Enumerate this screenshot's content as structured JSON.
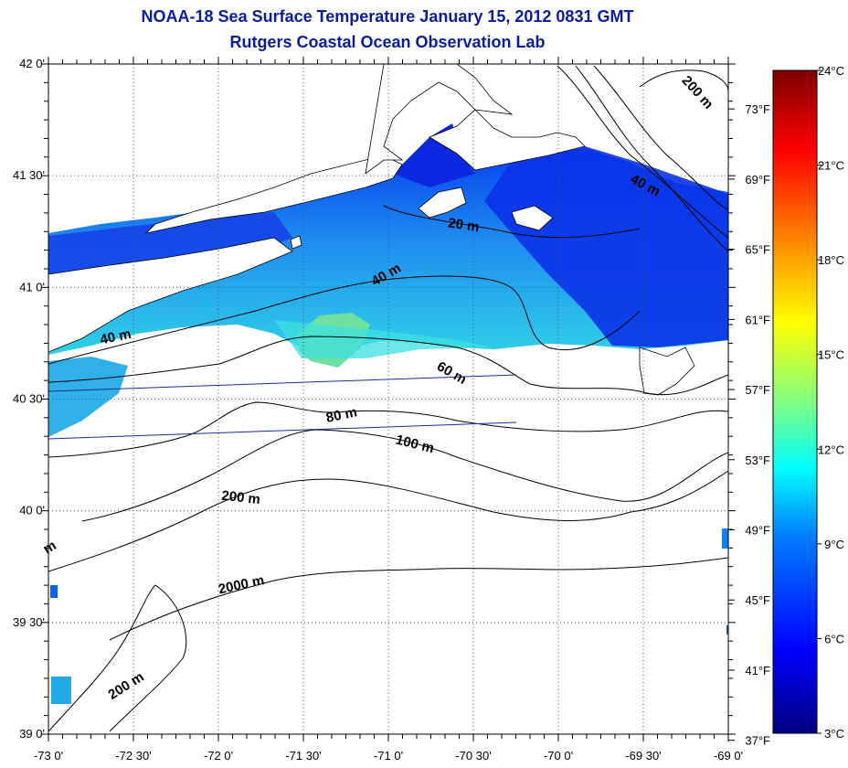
{
  "header": {
    "title": "NOAA-18 Sea Surface Temperature January 15, 2012 0831 GMT",
    "subtitle": "Rutgers Coastal Ocean Observation Lab"
  },
  "map": {
    "lat_labels": [
      "42 0'",
      "41 30'",
      "41 0'",
      "40 30'",
      "40 0'",
      "39 30'",
      "39 0'"
    ],
    "lon_labels": [
      "-73 0'",
      "-72 30'",
      "-72 0'",
      "-71 30'",
      "-71 0'",
      "-70 30'",
      "-70 0'",
      "-69 30'",
      "-69 0'"
    ],
    "extent": {
      "lon_min": -73.0,
      "lon_max": -69.0,
      "lat_min": 39.0,
      "lat_max": 42.0
    },
    "contour_labels": [
      {
        "text": "200 m",
        "lon": -69.2,
        "lat": 41.86,
        "rot": 48
      },
      {
        "text": "40 m",
        "lon": -69.5,
        "lat": 41.44,
        "rot": 28
      },
      {
        "text": "20 m",
        "lon": -70.56,
        "lat": 41.26,
        "rot": 8
      },
      {
        "text": "40 m",
        "lon": -71.0,
        "lat": 41.04,
        "rot": -30
      },
      {
        "text": "40 m",
        "lon": -72.6,
        "lat": 40.76,
        "rot": -12
      },
      {
        "text": "60 m",
        "lon": -70.64,
        "lat": 40.6,
        "rot": 30
      },
      {
        "text": "80 m",
        "lon": -71.27,
        "lat": 40.41,
        "rot": -12
      },
      {
        "text": "100 m",
        "lon": -70.85,
        "lat": 40.28,
        "rot": 14
      },
      {
        "text": "200 m",
        "lon": -71.87,
        "lat": 40.04,
        "rot": 6
      },
      {
        "text": "2000 m",
        "lon": -71.86,
        "lat": 39.65,
        "rot": -12
      },
      {
        "text": "200 m",
        "lon": -72.53,
        "lat": 39.2,
        "rot": -32
      },
      {
        "text": "m",
        "lon": -72.98,
        "lat": 39.82,
        "rot": -30
      }
    ]
  },
  "colorbar": {
    "celsius_labels": [
      "24°C",
      "21°C",
      "18°C",
      "15°C",
      "12°C",
      "9°C",
      "6°C",
      "3°C"
    ],
    "celsius_values": [
      24,
      21,
      18,
      15,
      12,
      9,
      6,
      3
    ],
    "fahrenheit_labels": [
      "73°F",
      "69°F",
      "65°F",
      "61°F",
      "57°F",
      "53°F",
      "49°F",
      "45°F",
      "41°F",
      "37°F"
    ],
    "fahrenheit_values": [
      73,
      69,
      65,
      61,
      57,
      53,
      49,
      45,
      41,
      37
    ],
    "range_c": [
      3,
      24
    ],
    "colors": [
      "#00007f",
      "#0000ff",
      "#0080ff",
      "#00ffff",
      "#80ff80",
      "#ffff00",
      "#ff8000",
      "#ff0000",
      "#7f0000"
    ]
  }
}
